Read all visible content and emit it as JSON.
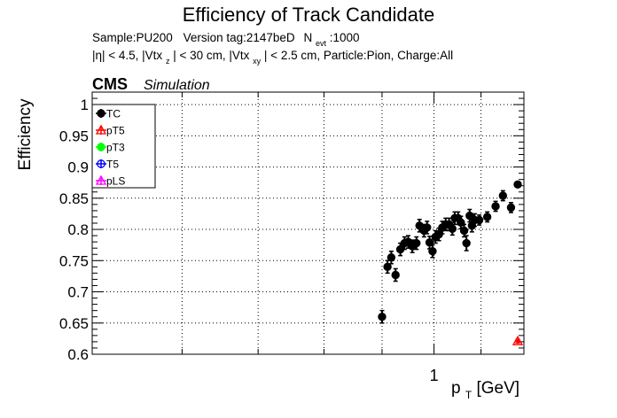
{
  "chart_data": {
    "type": "scatter",
    "title": "Efficiency of Track Candidate",
    "subtitle_line1": {
      "sample": "Sample:PU200",
      "version": "Version tag:2147beD",
      "nevt_prefix": "N",
      "nevt_sub": "evt",
      "nevt_value": ":1000"
    },
    "subtitle_line2": {
      "p1": "|η| < 4.5, |Vtx",
      "s1": "z",
      "p2": "| < 30 cm, |Vtx",
      "s2": "xy",
      "p3": "| < 2.5 cm, Particle:Pion, Charge:All"
    },
    "cms_label": "CMS",
    "simulation_label": "Simulation",
    "ylabel": "Efficiency",
    "xlabel_main": "p",
    "xlabel_sub": "T",
    "xlabel_unit": " [GeV]",
    "x_scale": "log",
    "xlim": [
      0.5,
      1.2
    ],
    "ylim": [
      0.6,
      1.02
    ],
    "grid": true,
    "legend_position": "top-left",
    "y_ticks": [
      {
        "value": 0.6,
        "label": "0.6"
      },
      {
        "value": 0.65,
        "label": "0.65"
      },
      {
        "value": 0.7,
        "label": "0.7"
      },
      {
        "value": 0.75,
        "label": "0.75"
      },
      {
        "value": 0.8,
        "label": "0.8"
      },
      {
        "value": 0.85,
        "label": "0.85"
      },
      {
        "value": 0.9,
        "label": "0.9"
      },
      {
        "value": 0.95,
        "label": "0.95"
      },
      {
        "value": 1.0,
        "label": "1"
      }
    ],
    "x_ticks": [
      {
        "value": 1.0,
        "label": "1"
      }
    ],
    "x_minor_ticks": [
      0.5,
      0.6,
      0.7,
      0.8,
      0.9,
      1.1,
      1.2
    ],
    "series": [
      {
        "name": "TC",
        "color": "#000000",
        "marker": "filled-circle",
        "points": [
          {
            "x": 0.9,
            "xerr": 0.005,
            "y": 0.66,
            "yerr": 0.01
          },
          {
            "x": 0.91,
            "xerr": 0.005,
            "y": 0.74,
            "yerr": 0.01
          },
          {
            "x": 0.917,
            "xerr": 0.005,
            "y": 0.755,
            "yerr": 0.01
          },
          {
            "x": 0.925,
            "xerr": 0.005,
            "y": 0.727,
            "yerr": 0.01
          },
          {
            "x": 0.934,
            "xerr": 0.005,
            "y": 0.768,
            "yerr": 0.01
          },
          {
            "x": 0.942,
            "xerr": 0.005,
            "y": 0.778,
            "yerr": 0.01
          },
          {
            "x": 0.949,
            "xerr": 0.005,
            "y": 0.78,
            "yerr": 0.01
          },
          {
            "x": 0.957,
            "xerr": 0.005,
            "y": 0.773,
            "yerr": 0.01
          },
          {
            "x": 0.965,
            "xerr": 0.005,
            "y": 0.778,
            "yerr": 0.01
          },
          {
            "x": 0.971,
            "xerr": 0.005,
            "y": 0.806,
            "yerr": 0.01
          },
          {
            "x": 0.98,
            "xerr": 0.005,
            "y": 0.798,
            "yerr": 0.01
          },
          {
            "x": 0.986,
            "xerr": 0.005,
            "y": 0.803,
            "yerr": 0.01
          },
          {
            "x": 0.991,
            "xerr": 0.005,
            "y": 0.779,
            "yerr": 0.01
          },
          {
            "x": 0.997,
            "xerr": 0.005,
            "y": 0.765,
            "yerr": 0.01
          },
          {
            "x": 1.003,
            "xerr": 0.005,
            "y": 0.788,
            "yerr": 0.01
          },
          {
            "x": 1.01,
            "xerr": 0.005,
            "y": 0.792,
            "yerr": 0.01
          },
          {
            "x": 1.017,
            "xerr": 0.005,
            "y": 0.803,
            "yerr": 0.01
          },
          {
            "x": 1.024,
            "xerr": 0.005,
            "y": 0.808,
            "yerr": 0.01
          },
          {
            "x": 1.031,
            "xerr": 0.005,
            "y": 0.808,
            "yerr": 0.01
          },
          {
            "x": 1.038,
            "xerr": 0.005,
            "y": 0.801,
            "yerr": 0.01
          },
          {
            "x": 1.043,
            "xerr": 0.005,
            "y": 0.818,
            "yerr": 0.01
          },
          {
            "x": 1.05,
            "xerr": 0.005,
            "y": 0.818,
            "yerr": 0.01
          },
          {
            "x": 1.056,
            "xerr": 0.005,
            "y": 0.811,
            "yerr": 0.01
          },
          {
            "x": 1.063,
            "xerr": 0.005,
            "y": 0.798,
            "yerr": 0.01
          },
          {
            "x": 1.068,
            "xerr": 0.005,
            "y": 0.778,
            "yerr": 0.012
          },
          {
            "x": 1.075,
            "xerr": 0.005,
            "y": 0.822,
            "yerr": 0.01
          },
          {
            "x": 1.08,
            "xerr": 0.005,
            "y": 0.806,
            "yerr": 0.01
          },
          {
            "x": 1.086,
            "xerr": 0.005,
            "y": 0.815,
            "yerr": 0.01
          },
          {
            "x": 1.096,
            "xerr": 0.007,
            "y": 0.815,
            "yerr": 0.008
          },
          {
            "x": 1.114,
            "xerr": 0.008,
            "y": 0.82,
            "yerr": 0.008
          },
          {
            "x": 1.133,
            "xerr": 0.008,
            "y": 0.837,
            "yerr": 0.008
          },
          {
            "x": 1.15,
            "xerr": 0.007,
            "y": 0.854,
            "yerr": 0.008
          },
          {
            "x": 1.169,
            "xerr": 0.007,
            "y": 0.835,
            "yerr": 0.008
          },
          {
            "x": 1.185,
            "xerr": 0.007,
            "y": 0.872,
            "yerr": 0.004
          }
        ]
      },
      {
        "name": "pT5",
        "color": "#ff0000",
        "marker": "open-triangle",
        "points": [
          {
            "x": 1.185,
            "xerr": 0.007,
            "y": 0.621,
            "yerr": 0.003
          }
        ]
      },
      {
        "name": "pT3",
        "color": "#00ff00",
        "marker": "filled-circle",
        "points": []
      },
      {
        "name": "T5",
        "color": "#0000ff",
        "marker": "open-circle",
        "points": []
      },
      {
        "name": "pLS",
        "color": "#ff00ff",
        "marker": "open-triangle",
        "points": []
      }
    ]
  }
}
